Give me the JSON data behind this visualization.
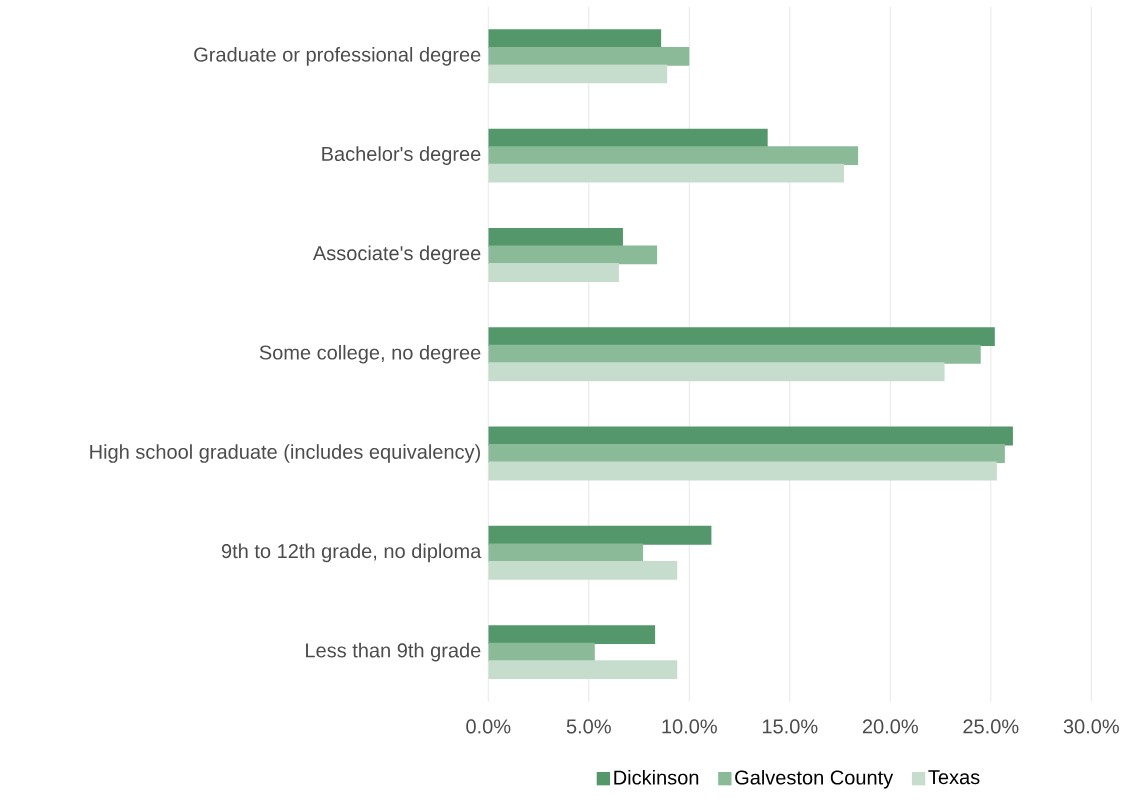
{
  "chart_data": {
    "type": "bar",
    "orientation": "horizontal",
    "categories": [
      "Graduate or professional degree",
      "Bachelor's degree",
      "Associate's degree",
      "Some college, no degree",
      "High school graduate (includes equivalency)",
      "9th to 12th grade, no diploma",
      "Less than 9th grade"
    ],
    "series": [
      {
        "name": "Dickinson",
        "color": "#53976b",
        "values": [
          8.6,
          13.9,
          6.7,
          25.2,
          26.1,
          11.1,
          8.3
        ]
      },
      {
        "name": "Galveston County",
        "color": "#8aba98",
        "values": [
          10.0,
          18.4,
          8.4,
          24.5,
          25.7,
          7.7,
          5.3
        ]
      },
      {
        "name": "Texas",
        "color": "#c6ddcd",
        "values": [
          8.9,
          17.7,
          6.5,
          22.7,
          25.3,
          9.4,
          9.4
        ]
      }
    ],
    "xlim": [
      0,
      30
    ],
    "xticks": [
      {
        "value": 0,
        "label": "0.0%"
      },
      {
        "value": 5,
        "label": "5.0%"
      },
      {
        "value": 10,
        "label": "10.0%"
      },
      {
        "value": 15,
        "label": "15.0%"
      },
      {
        "value": 20,
        "label": "20.0%"
      },
      {
        "value": 25,
        "label": "25.0%"
      },
      {
        "value": 30,
        "label": "30.0%"
      }
    ],
    "grid": "x",
    "legend": "bottom"
  }
}
